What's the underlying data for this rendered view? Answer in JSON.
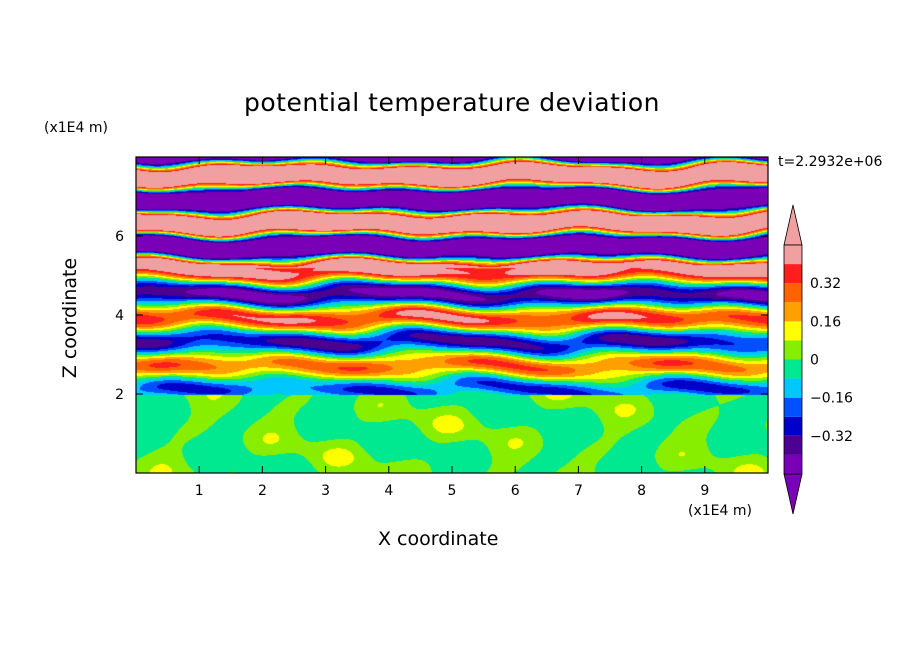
{
  "chart_data": {
    "type": "heatmap",
    "title": "potential temperature deviation",
    "xlabel": "X coordinate",
    "ylabel": "Z coordinate",
    "x_unit": "(x1E4 m)",
    "z_unit": "(x1E4 m)",
    "timestamp": "t=2.2932e+06",
    "xlim": [
      0,
      10
    ],
    "ylim": [
      0,
      8
    ],
    "x_ticks": [
      "1",
      "2",
      "3",
      "4",
      "5",
      "6",
      "7",
      "8",
      "9"
    ],
    "y_ticks": [
      "2",
      "4",
      "6"
    ],
    "colorbar": {
      "levels": [
        -0.48,
        -0.4,
        -0.32,
        -0.24,
        -0.16,
        -0.08,
        0,
        0.08,
        0.16,
        0.24,
        0.32,
        0.4,
        0.48
      ],
      "labels": [
        "0.32",
        "0.16",
        "0",
        "−0.16",
        "−0.32"
      ],
      "label_values": [
        0.32,
        0.16,
        0,
        -0.16,
        -0.32
      ],
      "colors": [
        "#7a00b8",
        "#4b0090",
        "#0000c8",
        "#0050ff",
        "#00c8ff",
        "#00e890",
        "#88ee00",
        "#ffff00",
        "#ffa000",
        "#ff6400",
        "#ff1e1e",
        "#f0a0a0"
      ]
    },
    "regions": [
      {
        "zrange": [
          0,
          2
        ],
        "description": "lower layer: mostly green (near 0) with light-green patches"
      },
      {
        "zrange": [
          2,
          8
        ],
        "description": "upper layer: strongly stratified horizontal bands of alternating positive/negative deviation"
      }
    ]
  }
}
